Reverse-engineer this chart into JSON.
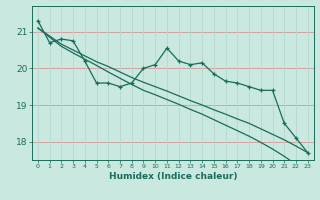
{
  "x": [
    0,
    1,
    2,
    3,
    4,
    5,
    6,
    7,
    8,
    9,
    10,
    11,
    12,
    13,
    14,
    15,
    16,
    17,
    18,
    19,
    20,
    21,
    22,
    23
  ],
  "line1": [
    21.3,
    20.7,
    20.8,
    20.75,
    20.2,
    19.6,
    19.6,
    19.5,
    19.6,
    20.0,
    20.1,
    20.55,
    20.2,
    20.1,
    20.15,
    19.85,
    19.65,
    19.6,
    19.5,
    19.4,
    19.4,
    18.5,
    18.1,
    17.7
  ],
  "trend1": [
    21.1,
    20.88,
    20.66,
    20.5,
    20.34,
    20.18,
    20.05,
    19.9,
    19.75,
    19.62,
    19.5,
    19.38,
    19.25,
    19.12,
    19.0,
    18.87,
    18.75,
    18.62,
    18.5,
    18.35,
    18.2,
    18.05,
    17.88,
    17.7
  ],
  "trend2": [
    21.1,
    20.85,
    20.6,
    20.42,
    20.25,
    20.08,
    19.9,
    19.73,
    19.56,
    19.4,
    19.28,
    19.15,
    19.02,
    18.88,
    18.75,
    18.6,
    18.45,
    18.3,
    18.15,
    17.98,
    17.8,
    17.6,
    17.38,
    17.15
  ],
  "bg_color": "#c8e8e0",
  "line_color": "#1a6b5a",
  "grid_color_h": "#d4a0a0",
  "grid_color_v": "#b8d8d0",
  "xlabel": "Humidex (Indice chaleur)",
  "ylim": [
    17.5,
    21.7
  ],
  "xlim": [
    -0.5,
    23.5
  ],
  "yticks": [
    18,
    19,
    20,
    21
  ],
  "xticks": [
    0,
    1,
    2,
    3,
    4,
    5,
    6,
    7,
    8,
    9,
    10,
    11,
    12,
    13,
    14,
    15,
    16,
    17,
    18,
    19,
    20,
    21,
    22,
    23
  ]
}
